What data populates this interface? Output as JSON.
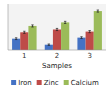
{
  "chart_data": {
    "type": "bar",
    "xlabel": "Samples",
    "categories": [
      "1",
      "2",
      "3"
    ],
    "series": [
      {
        "name": "Iron",
        "color": "#4472c4",
        "values": [
          3.2,
          1.5,
          3.5
        ],
        "errors": [
          0.25,
          0.2,
          0.25
        ]
      },
      {
        "name": "Zinc",
        "color": "#be4b48",
        "values": [
          5.0,
          5.8,
          5.2
        ],
        "errors": [
          0.3,
          0.3,
          0.3
        ]
      },
      {
        "name": "Calcium",
        "color": "#9bbb59",
        "values": [
          6.8,
          7.8,
          11.0
        ],
        "errors": [
          0.3,
          0.3,
          0.3
        ]
      }
    ],
    "ylim": [
      0,
      13
    ],
    "tick_labels": "x",
    "grid": false,
    "legend": "bottom"
  }
}
